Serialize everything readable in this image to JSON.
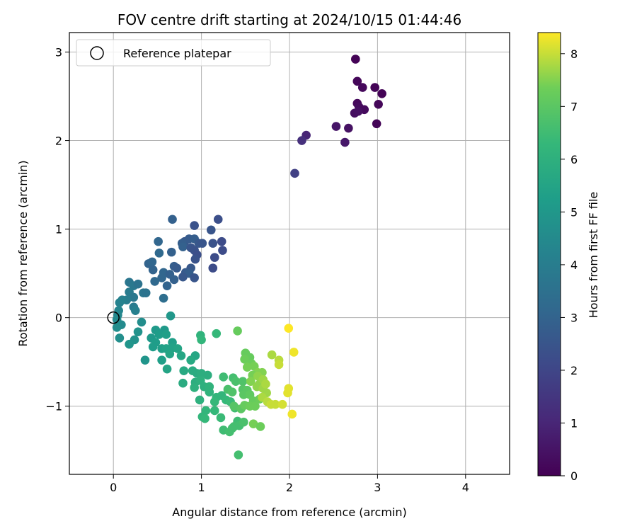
{
  "chart_data": {
    "type": "scatter",
    "title": "FOV centre drift starting at 2024/10/15 01:44:46",
    "xlabel": "Angular distance from reference (arcmin)",
    "ylabel": "Rotation from reference (arcmin)",
    "xlim": [
      -0.5,
      4.5
    ],
    "ylim": [
      -1.77,
      3.22
    ],
    "x_ticks": [
      0,
      1,
      2,
      3,
      4
    ],
    "y_ticks": [
      -1,
      0,
      1,
      2,
      3
    ],
    "grid": true,
    "legend": {
      "placement": "top-left",
      "entries": [
        "Reference platepar"
      ]
    },
    "reference_point": {
      "x": 0,
      "y": 0
    },
    "colorbar": {
      "label": "Hours from first FF file",
      "colormap": "viridis",
      "range": [
        0,
        8.4
      ],
      "ticks": [
        0,
        1,
        2,
        3,
        4,
        5,
        6,
        7,
        8
      ]
    },
    "points": [
      [
        2.75,
        2.92,
        0.05
      ],
      [
        2.77,
        2.67,
        0.15
      ],
      [
        2.97,
        2.6,
        0.1
      ],
      [
        2.83,
        2.6,
        0.2
      ],
      [
        3.05,
        2.53,
        0.05
      ],
      [
        2.77,
        2.42,
        0.2
      ],
      [
        2.79,
        2.38,
        0.3
      ],
      [
        2.85,
        2.35,
        0.25
      ],
      [
        3.01,
        2.41,
        0.15
      ],
      [
        2.74,
        2.31,
        0.35
      ],
      [
        2.78,
        2.33,
        0.4
      ],
      [
        2.99,
        2.19,
        0.1
      ],
      [
        2.53,
        2.16,
        0.55
      ],
      [
        2.67,
        2.14,
        0.45
      ],
      [
        2.63,
        1.98,
        0.6
      ],
      [
        2.19,
        2.06,
        1.0
      ],
      [
        2.14,
        2.0,
        1.3
      ],
      [
        2.06,
        1.63,
        1.8
      ],
      [
        0.67,
        1.11,
        2.9
      ],
      [
        1.19,
        1.11,
        2.3
      ],
      [
        0.92,
        1.04,
        2.4
      ],
      [
        1.11,
        0.99,
        2.5
      ],
      [
        0.51,
        0.86,
        3.1
      ],
      [
        0.81,
        0.86,
        2.6
      ],
      [
        0.86,
        0.89,
        2.7
      ],
      [
        0.92,
        0.89,
        2.8
      ],
      [
        0.97,
        0.84,
        2.6
      ],
      [
        1.01,
        0.84,
        2.5
      ],
      [
        1.13,
        0.84,
        2.4
      ],
      [
        1.23,
        0.86,
        2.2
      ],
      [
        0.78,
        0.84,
        2.8
      ],
      [
        0.79,
        0.8,
        2.9
      ],
      [
        0.88,
        0.79,
        2.5
      ],
      [
        0.92,
        0.76,
        2.4
      ],
      [
        1.24,
        0.76,
        2.2
      ],
      [
        0.66,
        0.74,
        2.9
      ],
      [
        0.52,
        0.73,
        3.2
      ],
      [
        0.95,
        0.71,
        2.3
      ],
      [
        1.15,
        0.68,
        2.2
      ],
      [
        0.93,
        0.66,
        2.4
      ],
      [
        0.4,
        0.61,
        3.0
      ],
      [
        0.44,
        0.63,
        3.1
      ],
      [
        0.69,
        0.58,
        2.8
      ],
      [
        0.72,
        0.56,
        2.7
      ],
      [
        0.88,
        0.56,
        2.6
      ],
      [
        1.13,
        0.56,
        2.2
      ],
      [
        0.45,
        0.54,
        3.0
      ],
      [
        0.57,
        0.51,
        3.1
      ],
      [
        0.64,
        0.49,
        2.9
      ],
      [
        0.82,
        0.51,
        2.7
      ],
      [
        0.86,
        0.5,
        2.8
      ],
      [
        0.79,
        0.46,
        2.6
      ],
      [
        0.92,
        0.45,
        2.5
      ],
      [
        0.55,
        0.45,
        3.1
      ],
      [
        0.69,
        0.43,
        2.9
      ],
      [
        0.47,
        0.41,
        3.2
      ],
      [
        0.61,
        0.36,
        3.0
      ],
      [
        0.57,
        0.22,
        3.4
      ],
      [
        0.18,
        0.4,
        3.7
      ],
      [
        0.23,
        0.36,
        3.8
      ],
      [
        0.28,
        0.38,
        3.6
      ],
      [
        0.18,
        0.29,
        3.9
      ],
      [
        0.34,
        0.28,
        3.7
      ],
      [
        0.37,
        0.28,
        3.6
      ],
      [
        0.23,
        0.23,
        3.8
      ],
      [
        0.15,
        0.2,
        4.0
      ],
      [
        0.1,
        0.2,
        4.1
      ],
      [
        0.07,
        0.17,
        4.2
      ],
      [
        0.23,
        0.12,
        3.9
      ],
      [
        0.06,
        0.08,
        4.3
      ],
      [
        0.25,
        0.08,
        4.1
      ],
      [
        0.05,
        0.03,
        4.4
      ],
      [
        0.04,
        -0.02,
        4.5
      ],
      [
        0.32,
        -0.05,
        4.6
      ],
      [
        0.09,
        -0.08,
        4.5
      ],
      [
        0.04,
        -0.11,
        4.6
      ],
      [
        0.28,
        -0.16,
        4.8
      ],
      [
        0.07,
        -0.23,
        4.7
      ],
      [
        0.24,
        -0.25,
        4.8
      ],
      [
        0.18,
        -0.3,
        4.9
      ],
      [
        0.36,
        -0.48,
        4.9
      ],
      [
        0.65,
        0.02,
        5.0
      ],
      [
        0.48,
        -0.14,
        5.1
      ],
      [
        0.58,
        -0.14,
        5.1
      ],
      [
        0.52,
        -0.19,
        5.2
      ],
      [
        0.6,
        -0.19,
        5.3
      ],
      [
        0.43,
        -0.23,
        5.1
      ],
      [
        0.48,
        -0.28,
        5.2
      ],
      [
        0.67,
        -0.28,
        5.3
      ],
      [
        0.45,
        -0.33,
        5.2
      ],
      [
        0.55,
        -0.35,
        5.3
      ],
      [
        0.6,
        -0.35,
        5.4
      ],
      [
        0.67,
        -0.34,
        5.4
      ],
      [
        0.73,
        -0.35,
        5.5
      ],
      [
        0.64,
        -0.41,
        5.5
      ],
      [
        0.77,
        -0.43,
        5.6
      ],
      [
        0.93,
        -0.43,
        5.6
      ],
      [
        0.55,
        -0.48,
        5.3
      ],
      [
        0.88,
        -0.48,
        5.7
      ],
      [
        0.61,
        -0.58,
        5.5
      ],
      [
        0.8,
        -0.6,
        5.7
      ],
      [
        0.9,
        -0.6,
        5.8
      ],
      [
        0.95,
        -0.63,
        5.8
      ],
      [
        1.0,
        -0.63,
        5.9
      ],
      [
        1.07,
        -0.65,
        5.9
      ],
      [
        0.79,
        -0.74,
        5.8
      ],
      [
        0.93,
        -0.73,
        5.9
      ],
      [
        0.99,
        -0.71,
        6.0
      ],
      [
        1.03,
        -0.78,
        6.0
      ],
      [
        1.09,
        -0.78,
        6.1
      ],
      [
        0.92,
        -0.79,
        6.0
      ],
      [
        1.09,
        -0.84,
        6.1
      ],
      [
        1.17,
        -0.9,
        6.2
      ],
      [
        1.23,
        -0.88,
        6.2
      ],
      [
        0.98,
        -0.93,
        6.0
      ],
      [
        1.15,
        -0.95,
        6.3
      ],
      [
        1.28,
        -0.93,
        6.3
      ],
      [
        1.33,
        -0.95,
        6.4
      ],
      [
        1.05,
        -1.05,
        6.2
      ],
      [
        1.15,
        -1.05,
        6.3
      ],
      [
        1.38,
        -1.02,
        6.5
      ],
      [
        1.01,
        -1.12,
        6.2
      ],
      [
        1.04,
        -1.14,
        6.3
      ],
      [
        1.22,
        -1.13,
        6.4
      ],
      [
        1.41,
        -1.17,
        6.5
      ],
      [
        1.43,
        -1.22,
        6.6
      ],
      [
        1.37,
        -1.23,
        6.6
      ],
      [
        1.25,
        -1.27,
        6.5
      ],
      [
        1.32,
        -1.29,
        6.6
      ],
      [
        1.35,
        -1.25,
        6.6
      ],
      [
        1.48,
        -1.18,
        6.7
      ],
      [
        1.42,
        -1.55,
        6.6
      ],
      [
        0.99,
        -0.2,
        6.1
      ],
      [
        1.0,
        -0.25,
        6.2
      ],
      [
        1.17,
        -0.18,
        6.3
      ],
      [
        1.41,
        -0.15,
        7.2
      ],
      [
        1.25,
        -0.67,
        6.5
      ],
      [
        1.36,
        -0.68,
        6.6
      ],
      [
        1.39,
        -0.72,
        6.7
      ],
      [
        1.47,
        -0.72,
        6.8
      ],
      [
        1.47,
        -0.81,
        6.9
      ],
      [
        1.52,
        -0.82,
        7.0
      ],
      [
        1.3,
        -0.81,
        6.7
      ],
      [
        1.35,
        -0.84,
        6.8
      ],
      [
        1.48,
        -0.87,
        7.0
      ],
      [
        1.55,
        -0.87,
        7.1
      ],
      [
        1.59,
        -0.94,
        7.2
      ],
      [
        1.66,
        -0.92,
        7.3
      ],
      [
        1.37,
        -1.0,
        6.9
      ],
      [
        1.45,
        -1.03,
        7.0
      ],
      [
        1.49,
        -0.99,
        7.2
      ],
      [
        1.55,
        -1.0,
        7.3
      ],
      [
        1.61,
        -1.0,
        7.3
      ],
      [
        1.5,
        -0.4,
        7.2
      ],
      [
        1.55,
        -0.45,
        7.2
      ],
      [
        1.49,
        -0.47,
        7.3
      ],
      [
        1.57,
        -0.52,
        7.3
      ],
      [
        1.6,
        -0.55,
        7.4
      ],
      [
        1.52,
        -0.56,
        7.4
      ],
      [
        1.64,
        -0.62,
        7.5
      ],
      [
        1.69,
        -0.62,
        7.5
      ],
      [
        1.58,
        -0.65,
        7.4
      ],
      [
        1.56,
        -0.72,
        7.5
      ],
      [
        1.66,
        -0.75,
        7.6
      ],
      [
        1.63,
        -0.78,
        7.6
      ],
      [
        1.7,
        -0.8,
        7.7
      ],
      [
        1.74,
        -0.85,
        7.7
      ],
      [
        1.69,
        -0.9,
        7.8
      ],
      [
        1.75,
        -0.95,
        7.9
      ],
      [
        1.79,
        -0.98,
        8.0
      ],
      [
        1.84,
        -0.98,
        8.0
      ],
      [
        1.92,
        -0.98,
        8.1
      ],
      [
        1.99,
        -0.8,
        8.2
      ],
      [
        1.98,
        -0.85,
        8.2
      ],
      [
        2.03,
        -1.09,
        8.3
      ],
      [
        1.59,
        -1.2,
        7.4
      ],
      [
        1.67,
        -1.23,
        7.3
      ],
      [
        1.8,
        -0.42,
        7.8
      ],
      [
        1.88,
        -0.48,
        7.9
      ],
      [
        1.88,
        -0.53,
        8.0
      ],
      [
        2.05,
        -0.39,
        8.3
      ],
      [
        1.99,
        -0.12,
        8.4
      ],
      [
        1.64,
        -0.66,
        7.6
      ],
      [
        1.7,
        -0.7,
        7.7
      ],
      [
        1.73,
        -0.75,
        7.8
      ]
    ]
  }
}
